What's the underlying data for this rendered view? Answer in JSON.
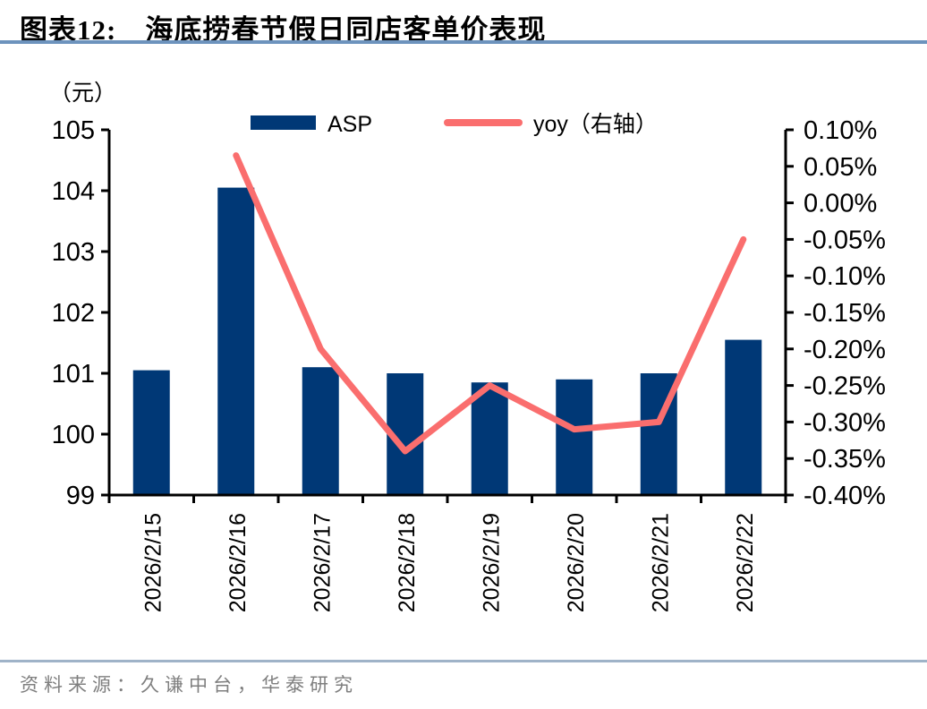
{
  "header": {
    "figure_label": "图表12:",
    "title": "海底捞春节假日同店客单价表现"
  },
  "colors": {
    "bar": "#003876",
    "line": "#FA6E6E",
    "axis": "#000000",
    "title_underline": "#6D93BD",
    "footer_divider": "#9FB3C8",
    "source_text": "#7F7F7F"
  },
  "chart_data": {
    "type": "bar",
    "subtype": "combo-bar-line-dual-axis",
    "title": "海底捞春节假日同店客单价表现",
    "unit_label": "（元）",
    "categories": [
      "2026/2/15",
      "2026/2/16",
      "2026/2/17",
      "2026/2/18",
      "2026/2/19",
      "2026/2/20",
      "2026/2/21",
      "2026/2/22"
    ],
    "series": [
      {
        "name": "ASP",
        "type": "bar",
        "axis": "left",
        "color": "#003876",
        "values": [
          101.05,
          104.05,
          101.1,
          101.0,
          100.85,
          100.9,
          101.0,
          101.55
        ]
      },
      {
        "name": "yoy（右轴）",
        "type": "line",
        "axis": "right",
        "color": "#FA6E6E",
        "values": [
          null,
          0.065,
          -0.2,
          -0.34,
          -0.25,
          -0.31,
          -0.3,
          -0.05
        ]
      }
    ],
    "left_axis": {
      "unit": "元",
      "min": 99,
      "max": 105,
      "step": 1,
      "tick_labels": [
        "105",
        "104",
        "103",
        "102",
        "101",
        "100",
        "99"
      ]
    },
    "right_axis": {
      "unit": "%",
      "min": -0.4,
      "max": 0.1,
      "step": 0.05,
      "tick_labels": [
        "0.10%",
        "0.05%",
        "0.00%",
        "-0.05%",
        "-0.10%",
        "-0.15%",
        "-0.20%",
        "-0.25%",
        "-0.30%",
        "-0.35%",
        "-0.40%"
      ]
    },
    "legend_position": "top",
    "grid": false
  },
  "footer": {
    "source": "资料来源：久谦中台，华泰研究"
  }
}
